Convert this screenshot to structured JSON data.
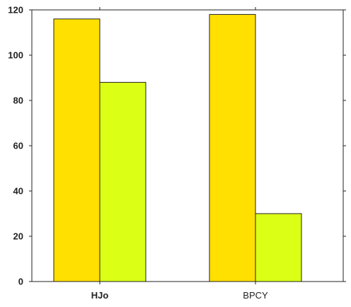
{
  "chart_data": {
    "type": "bar",
    "title": "",
    "xlabel": "",
    "ylabel": "",
    "categories": [
      "HJo",
      "BPCY"
    ],
    "series": [
      {
        "values": [
          116,
          118
        ],
        "color": "#ffe000"
      },
      {
        "values": [
          88,
          30
        ],
        "color": "#dcff16"
      }
    ],
    "ylim": [
      0,
      120
    ],
    "yticks": [
      0,
      20,
      40,
      60,
      80,
      100,
      120
    ],
    "grid": false,
    "legend": "none",
    "bar_edge_color": "#222222",
    "axis_color": "#222222"
  }
}
